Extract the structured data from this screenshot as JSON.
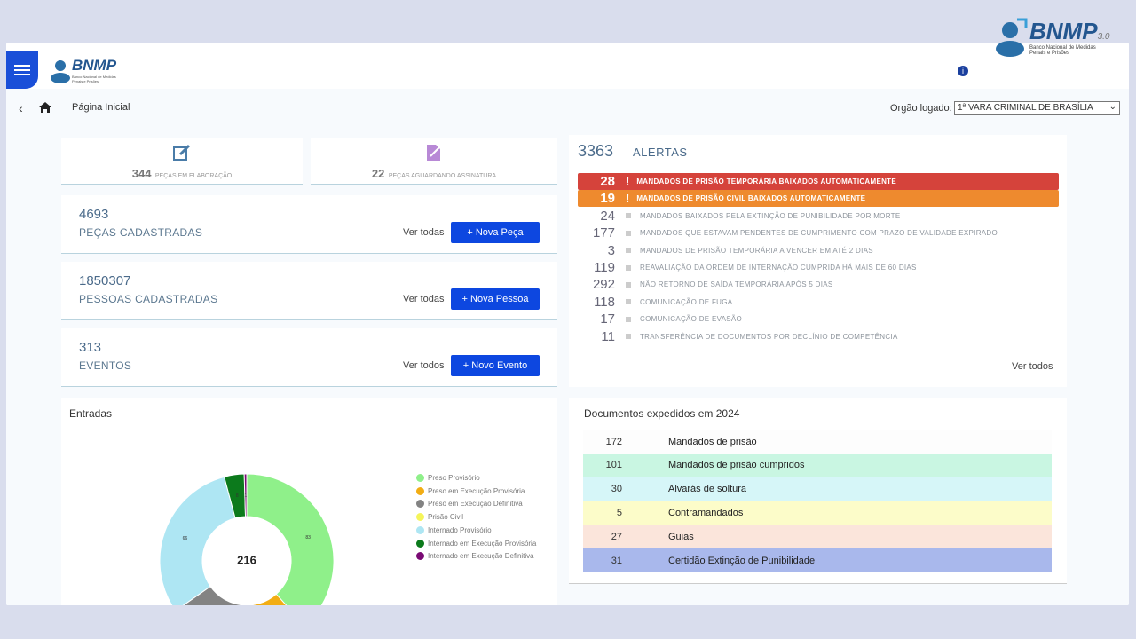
{
  "header": {
    "logo": "BNMP",
    "logo_version": "3.0",
    "logo_subtitle": "Banco Nacional de Medidas Penais e Prisões"
  },
  "breadcrumb": "Página Inicial",
  "orgao": {
    "label": "Orgão logado:",
    "value": "1ª VARA CRIMINAL DE BRASÍLIA"
  },
  "summary": [
    {
      "value": 344,
      "label": "PEÇAS EM ELABORAÇÃO"
    },
    {
      "value": 22,
      "label": "PEÇAS AGUARDANDO ASSINATURA"
    }
  ],
  "counters": [
    {
      "value": 4693,
      "label": "PEÇAS CADASTRADAS",
      "link": "Ver todas",
      "button": "+ Nova Peça"
    },
    {
      "value": 1850307,
      "label": "PESSOAS CADASTRADAS",
      "link": "Ver todas",
      "button": "+ Nova Pessoa"
    },
    {
      "value": 313,
      "label": "EVENTOS",
      "link": "Ver todos",
      "button": "+ Novo Evento"
    }
  ],
  "alerts": {
    "total": 3363,
    "title": "ALERTAS",
    "link": "Ver todos",
    "items": [
      {
        "count": 28,
        "text": "MANDADOS DE PRISÃO TEMPORÁRIA BAIXADOS AUTOMATICAMENTE",
        "color": "#d5433b"
      },
      {
        "count": 19,
        "text": "MANDADOS DE PRISÃO CIVIL BAIXADOS AUTOMATICAMENTE",
        "color": "#ee8a2e"
      },
      {
        "count": 24,
        "text": "MANDADOS BAIXADOS PELA EXTINÇÃO DE PUNIBILIDADE POR MORTE"
      },
      {
        "count": 177,
        "text": "MANDADOS QUE ESTAVAM PENDENTES DE CUMPRIMENTO COM PRAZO DE VALIDADE EXPIRADO"
      },
      {
        "count": 3,
        "text": "MANDADOS DE PRISÃO TEMPORÁRIA A VENCER EM ATÉ 2 DIAS"
      },
      {
        "count": 119,
        "text": "REAVALIAÇÃO DA ORDEM DE INTERNAÇÃO CUMPRIDA HÁ MAIS DE 60 DIAS"
      },
      {
        "count": 292,
        "text": "NÃO RETORNO DE SAÍDA TEMPORÁRIA APÓS 5 DIAS"
      },
      {
        "count": 118,
        "text": "COMUNICAÇÃO DE FUGA"
      },
      {
        "count": 17,
        "text": "COMUNICAÇÃO DE EVASÃO"
      },
      {
        "count": 11,
        "text": "TRANSFERÊNCIA DE DOCUMENTOS POR DECLÍNIO DE COMPETÊNCIA"
      }
    ]
  },
  "entradas": {
    "type": "pie",
    "title": "Entradas",
    "total": 216,
    "series": [
      {
        "name": "Preso Provisório",
        "color": "#8ff08a",
        "value": 83
      },
      {
        "name": "Preso em Execução Provisória",
        "color": "#f2ad14",
        "value": 29
      },
      {
        "name": "Preso em Execução Definitiva",
        "color": "#838383",
        "value": 29
      },
      {
        "name": "Prisão Civil",
        "color": "#f5f55a",
        "value": 0
      },
      {
        "name": "Internado Provisório",
        "color": "#aee6f3",
        "value": 66
      },
      {
        "name": "Internado em Execução Provisória",
        "color": "#0c7a1c",
        "value": 8
      },
      {
        "name": "Internado em Execução Definitiva",
        "color": "#7a0a74",
        "value": 1
      }
    ]
  },
  "documentos": {
    "title": "Documentos expedidos em 2024",
    "rows": [
      {
        "count": 172,
        "label": "Mandados de prisão",
        "color": "#fdfdfd"
      },
      {
        "count": 101,
        "label": "Mandados de prisão cumpridos",
        "color": "#c9f6e2"
      },
      {
        "count": 30,
        "label": "Alvarás de soltura",
        "color": "#d6f6f8"
      },
      {
        "count": 5,
        "label": "Contramandados",
        "color": "#fcfcc9"
      },
      {
        "count": 27,
        "label": "Guias",
        "color": "#fbe5db"
      },
      {
        "count": 31,
        "label": "Certidão Extinção de Punibilidade",
        "color": "#a9b8ec"
      }
    ]
  }
}
